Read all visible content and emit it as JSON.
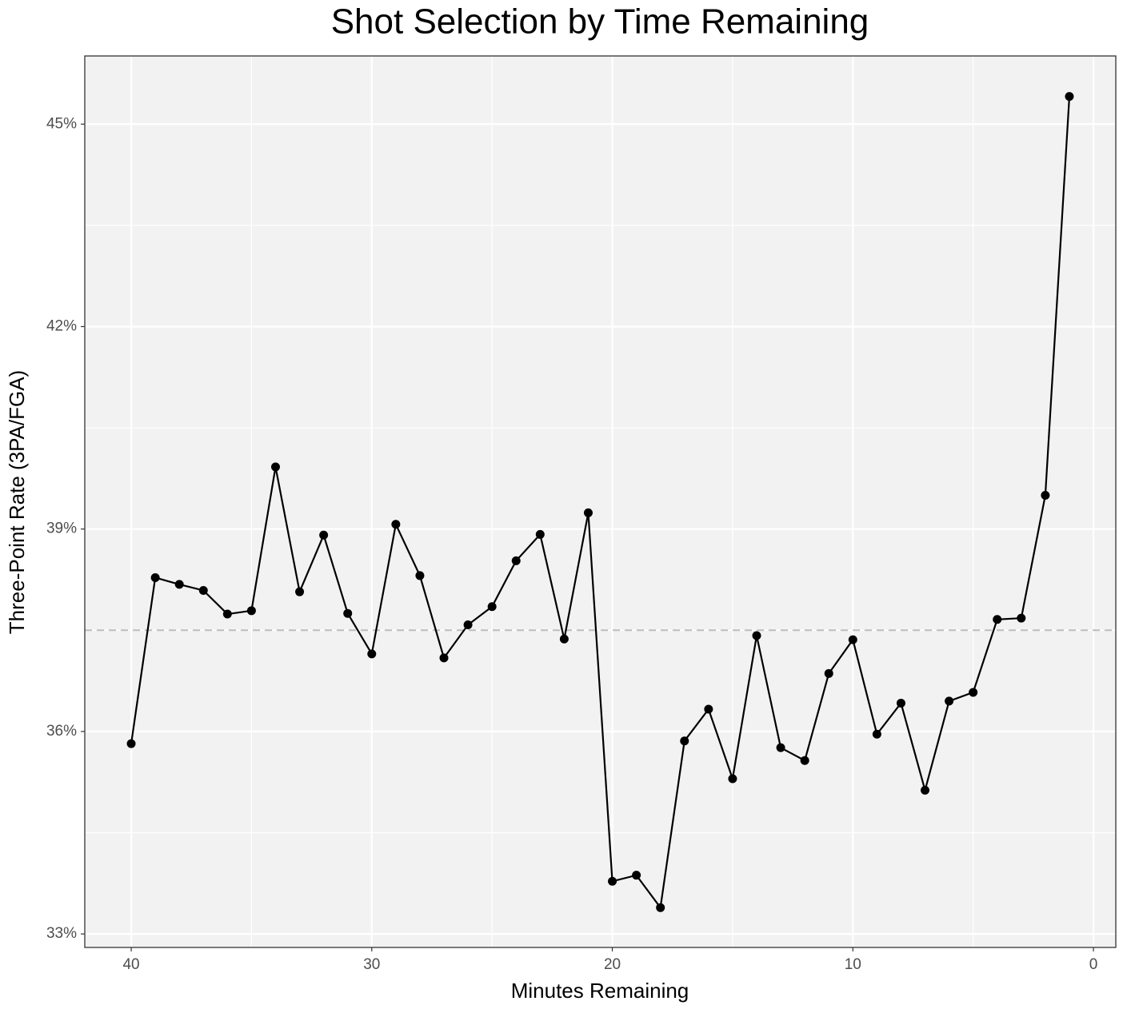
{
  "chart_data": {
    "type": "line",
    "title": "Shot Selection by Time Remaining",
    "x_label": "Minutes Remaining",
    "y_label": "Three-Point Rate (3PA/FGA)",
    "x": [
      40,
      39,
      38,
      37,
      36,
      35,
      34,
      33,
      32,
      31,
      30,
      29,
      28,
      27,
      26,
      25,
      24,
      23,
      22,
      21,
      20,
      19,
      18,
      17,
      16,
      15,
      14,
      13,
      12,
      11,
      10,
      9,
      8,
      7,
      6,
      5,
      4,
      3,
      2,
      1
    ],
    "series": [
      {
        "color": "#000000",
        "values": [
          35.82,
          38.28,
          38.18,
          38.09,
          37.74,
          37.79,
          39.92,
          38.07,
          38.91,
          37.75,
          37.15,
          39.07,
          38.31,
          37.09,
          37.58,
          37.85,
          38.53,
          38.92,
          37.37,
          39.24,
          33.78,
          33.87,
          33.39,
          35.86,
          36.33,
          35.3,
          37.42,
          35.76,
          35.57,
          36.86,
          37.36,
          35.96,
          36.42,
          35.13,
          36.45,
          36.58,
          37.66,
          37.68,
          39.5,
          45.41
        ]
      }
    ],
    "hline": 37.5,
    "hline_color": "#bdbdbd",
    "xlim": [
      41.93,
      -0.93
    ],
    "xticks": [
      40,
      30,
      20,
      10,
      0
    ],
    "ylim": [
      32.8,
      46.01
    ],
    "yticks": [
      {
        "value": 33,
        "label": "33%"
      },
      {
        "value": 36,
        "label": "36%"
      },
      {
        "value": 39,
        "label": "39%"
      },
      {
        "value": 42,
        "label": "42%"
      },
      {
        "value": 45,
        "label": "45%"
      }
    ],
    "grid": true
  }
}
